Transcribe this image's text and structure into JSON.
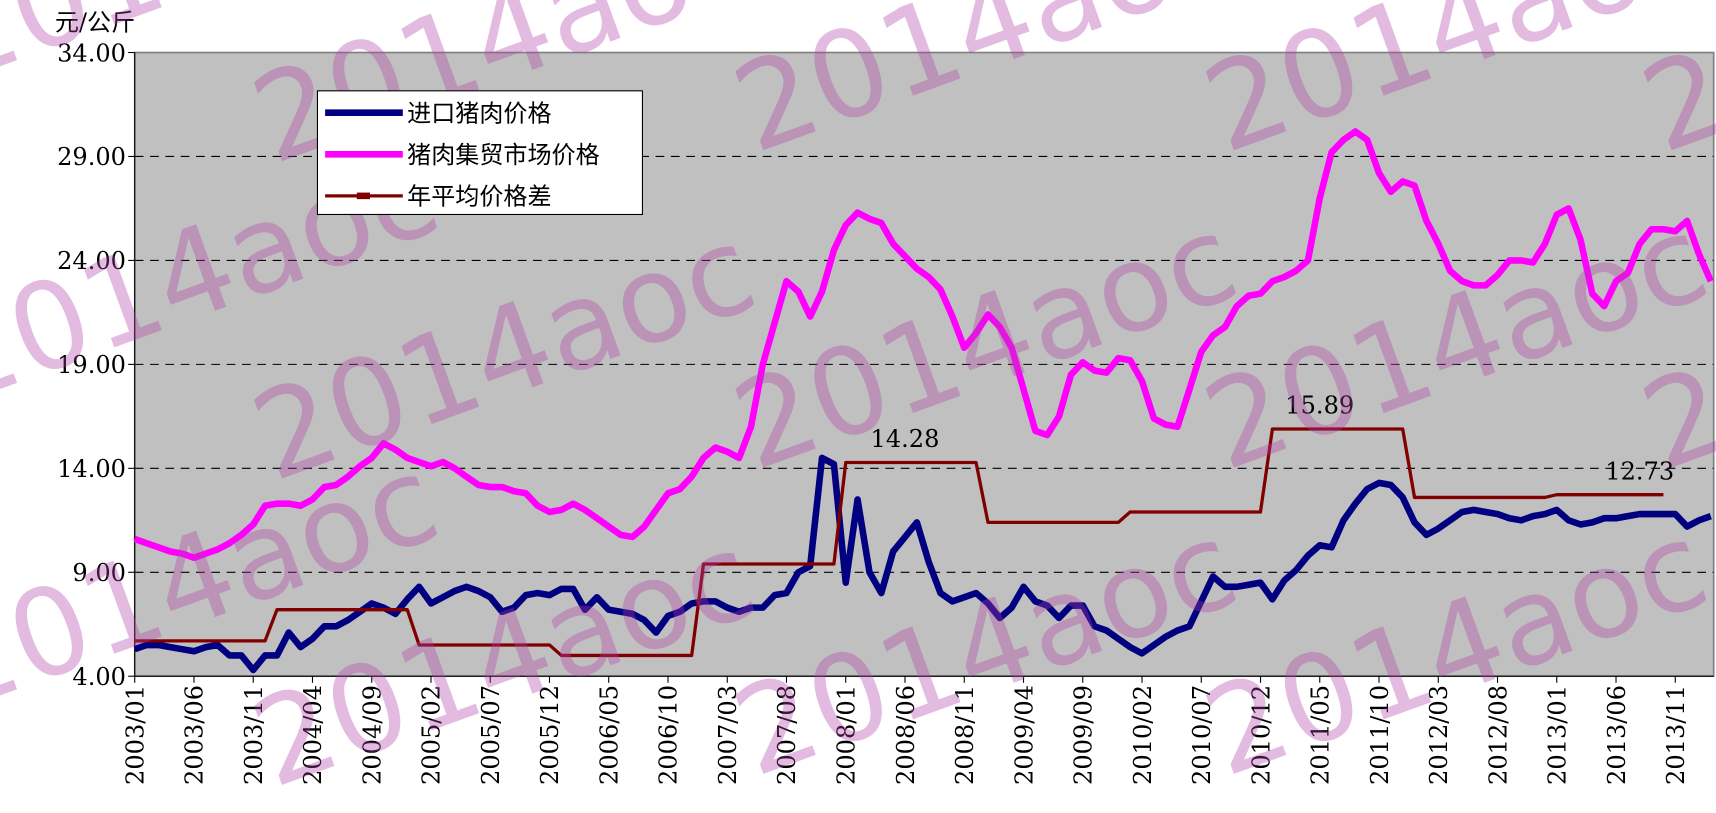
{
  "chart_data": {
    "type": "line",
    "y_label": "元/公斤",
    "watermark": "2014aoc",
    "categories": [
      "2003/01",
      null,
      null,
      null,
      null,
      "2003/06",
      null,
      null,
      null,
      null,
      "2003/11",
      null,
      null,
      null,
      null,
      "2004/04",
      null,
      null,
      null,
      null,
      "2004/09",
      null,
      null,
      null,
      null,
      "2005/02",
      null,
      null,
      null,
      null,
      "2005/07",
      null,
      null,
      null,
      null,
      "2005/12",
      null,
      null,
      null,
      null,
      "2006/05",
      null,
      null,
      null,
      null,
      "2006/10",
      null,
      null,
      null,
      null,
      "2007/03",
      null,
      null,
      null,
      null,
      "2007/08",
      null,
      null,
      null,
      null,
      "2008/01",
      null,
      null,
      null,
      null,
      "2008/06",
      null,
      null,
      null,
      null,
      "2008/11",
      null,
      null,
      null,
      null,
      "2009/04",
      null,
      null,
      null,
      null,
      "2009/09",
      null,
      null,
      null,
      null,
      "2010/02",
      null,
      null,
      null,
      null,
      "2010/07",
      null,
      null,
      null,
      null,
      "2010/12",
      null,
      null,
      null,
      null,
      "2011/05",
      null,
      null,
      null,
      null,
      "2011/10",
      null,
      null,
      null,
      null,
      "2012/03",
      null,
      null,
      null,
      null,
      "2012/08",
      null,
      null,
      null,
      null,
      "2013/01",
      null,
      null,
      null,
      null,
      "2013/06",
      null,
      null,
      null,
      null,
      "2013/11",
      null,
      null,
      null
    ],
    "series": [
      {
        "name": "进口猪肉价格",
        "color": "#000080",
        "width": 6,
        "values": [
          5.3,
          5.5,
          5.5,
          5.4,
          5.3,
          5.2,
          5.4,
          5.5,
          5.0,
          5.0,
          4.3,
          5.0,
          5.0,
          6.1,
          5.4,
          5.8,
          6.4,
          6.4,
          6.7,
          7.1,
          7.5,
          7.3,
          7.0,
          7.7,
          8.3,
          7.5,
          7.8,
          8.1,
          8.3,
          8.1,
          7.8,
          7.1,
          7.3,
          7.9,
          8.0,
          7.9,
          8.2,
          8.2,
          7.2,
          7.8,
          7.2,
          7.1,
          7.0,
          6.7,
          6.1,
          6.9,
          7.1,
          7.5,
          7.6,
          7.6,
          7.3,
          7.1,
          7.3,
          7.3,
          7.9,
          8.0,
          9.0,
          9.3,
          14.5,
          14.2,
          8.5,
          12.5,
          9.0,
          8.0,
          10.0,
          10.7,
          11.4,
          9.5,
          8.0,
          7.6,
          7.8,
          8.0,
          7.5,
          6.8,
          7.3,
          8.3,
          7.6,
          7.4,
          6.8,
          7.4,
          7.4,
          6.4,
          6.2,
          5.8,
          5.4,
          5.1,
          5.5,
          5.9,
          6.2,
          6.4,
          7.6,
          8.8,
          8.3,
          8.3,
          8.4,
          8.5,
          7.7,
          8.6,
          9.1,
          9.8,
          10.3,
          10.2,
          11.5,
          12.3,
          13.0,
          13.3,
          13.2,
          12.6,
          11.4,
          10.8,
          11.1,
          11.5,
          11.9,
          12.0,
          11.9,
          11.8,
          11.6,
          11.5,
          11.7,
          11.8,
          12.0,
          11.5,
          11.3,
          11.4,
          11.6,
          11.6,
          11.7,
          11.8,
          11.8,
          11.8,
          11.8,
          11.2,
          11.5,
          11.7
        ]
      },
      {
        "name": "猪肉集贸市场价格",
        "color": "#ff00ff",
        "width": 6,
        "values": [
          10.6,
          10.4,
          10.2,
          10.0,
          9.9,
          9.7,
          9.9,
          10.1,
          10.4,
          10.8,
          11.3,
          12.2,
          12.3,
          12.3,
          12.2,
          12.5,
          13.1,
          13.2,
          13.6,
          14.1,
          14.5,
          15.2,
          14.9,
          14.5,
          14.3,
          14.1,
          14.3,
          14.0,
          13.6,
          13.2,
          13.1,
          13.1,
          12.9,
          12.8,
          12.2,
          11.9,
          12.0,
          12.3,
          12.0,
          11.6,
          11.2,
          10.8,
          10.7,
          11.2,
          12.0,
          12.8,
          13.0,
          13.6,
          14.5,
          15.0,
          14.8,
          14.5,
          16.0,
          19.0,
          21.0,
          23.0,
          22.5,
          21.3,
          22.5,
          24.5,
          25.7,
          26.3,
          26.0,
          25.8,
          24.8,
          24.2,
          23.6,
          23.2,
          22.6,
          21.3,
          19.8,
          20.5,
          21.4,
          20.8,
          19.8,
          17.8,
          15.8,
          15.6,
          16.5,
          18.5,
          19.1,
          18.7,
          18.6,
          19.3,
          19.2,
          18.2,
          16.4,
          16.1,
          16.0,
          17.8,
          19.6,
          20.4,
          20.8,
          21.8,
          22.3,
          22.4,
          23.0,
          23.2,
          23.5,
          24.0,
          27.0,
          29.2,
          29.8,
          30.2,
          29.8,
          28.2,
          27.3,
          27.8,
          27.6,
          25.9,
          24.8,
          23.5,
          23.0,
          22.8,
          22.8,
          23.3,
          24.0,
          24.0,
          23.9,
          24.8,
          26.2,
          26.5,
          25.0,
          22.4,
          21.8,
          23.0,
          23.4,
          24.8,
          25.5,
          25.5,
          25.4,
          25.9,
          24.3,
          23.0
        ]
      },
      {
        "name": "年平均价格差",
        "color": "#800000",
        "width": 3,
        "values": [
          5.7,
          5.7,
          5.7,
          5.7,
          5.7,
          5.7,
          5.7,
          5.7,
          5.7,
          5.7,
          5.7,
          5.7,
          7.2,
          7.2,
          7.2,
          7.2,
          7.2,
          7.2,
          7.2,
          7.2,
          7.2,
          7.2,
          7.2,
          7.2,
          5.5,
          5.5,
          5.5,
          5.5,
          5.5,
          5.5,
          5.5,
          5.5,
          5.5,
          5.5,
          5.5,
          5.5,
          5.0,
          5.0,
          5.0,
          5.0,
          5.0,
          5.0,
          5.0,
          5.0,
          5.0,
          5.0,
          5.0,
          5.0,
          9.4,
          9.4,
          9.4,
          9.4,
          9.4,
          9.4,
          9.4,
          9.4,
          9.4,
          9.4,
          9.4,
          9.4,
          14.28,
          14.28,
          14.28,
          14.28,
          14.28,
          14.28,
          14.28,
          14.28,
          14.28,
          14.28,
          14.28,
          14.28,
          11.4,
          11.4,
          11.4,
          11.4,
          11.4,
          11.4,
          11.4,
          11.4,
          11.4,
          11.4,
          11.4,
          11.4,
          11.9,
          11.9,
          11.9,
          11.9,
          11.9,
          11.9,
          11.9,
          11.9,
          11.9,
          11.9,
          11.9,
          11.9,
          15.89,
          15.89,
          15.89,
          15.89,
          15.89,
          15.89,
          15.89,
          15.89,
          15.89,
          15.89,
          15.89,
          15.89,
          12.6,
          12.6,
          12.6,
          12.6,
          12.6,
          12.6,
          12.6,
          12.6,
          12.6,
          12.6,
          12.6,
          12.6,
          12.73,
          12.73,
          12.73,
          12.73,
          12.73,
          12.73,
          12.73,
          12.73,
          12.73,
          12.73,
          null,
          null,
          null,
          null
        ],
        "value_labels": [
          null,
          null,
          null,
          null,
          null,
          null,
          null,
          null,
          null,
          null,
          null,
          null,
          null,
          null,
          null,
          null,
          null,
          null,
          null,
          null,
          null,
          null,
          null,
          null,
          null,
          null,
          null,
          null,
          null,
          null,
          null,
          null,
          null,
          null,
          null,
          null,
          null,
          null,
          null,
          null,
          null,
          null,
          null,
          null,
          null,
          null,
          null,
          null,
          null,
          null,
          null,
          null,
          null,
          null,
          null,
          null,
          null,
          null,
          null,
          null,
          null,
          null,
          null,
          null,
          null,
          "14.28",
          null,
          null,
          null,
          null,
          null,
          null,
          null,
          null,
          null,
          null,
          null,
          null,
          null,
          null,
          null,
          null,
          null,
          null,
          null,
          null,
          null,
          null,
          null,
          null,
          null,
          null,
          null,
          null,
          null,
          null,
          null,
          null,
          null,
          null,
          "15.89",
          null,
          null,
          null,
          null,
          null,
          null,
          null,
          null,
          null,
          null,
          null,
          null,
          null,
          null,
          null,
          null,
          null,
          null,
          null,
          null,
          null,
          null,
          null,
          null,
          null,
          null,
          "12.73",
          null,
          null,
          null,
          null,
          null,
          null
        ]
      }
    ],
    "ylim": [
      4,
      34
    ],
    "yticks": [
      {
        "value": 4,
        "label": "4.00"
      },
      {
        "value": 9,
        "label": "9.00"
      },
      {
        "value": 14,
        "label": "14.00"
      },
      {
        "value": 19,
        "label": "19.00"
      },
      {
        "value": 24,
        "label": "24.00"
      },
      {
        "value": 29,
        "label": "29.00"
      },
      {
        "value": 34,
        "label": "34.00"
      }
    ],
    "grid": true,
    "background": "#c0c0c0",
    "legend": "upper left"
  }
}
